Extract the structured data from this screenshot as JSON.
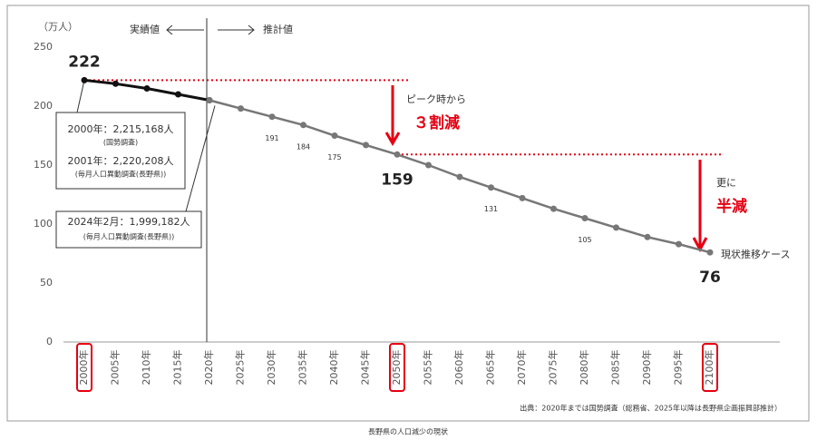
{
  "chart_data": {
    "type": "line",
    "y_label": "（万人）",
    "categories": [
      "2000年",
      "2005年",
      "2010年",
      "2015年",
      "2020年",
      "2025年",
      "2030年",
      "2035年",
      "2040年",
      "2045年",
      "2050年",
      "2055年",
      "2060年",
      "2065年",
      "2070年",
      "2075年",
      "2080年",
      "2085年",
      "2090年",
      "2095年",
      "2100年"
    ],
    "series": [
      {
        "name": "実績値",
        "color": "#111111",
        "values": [
          222,
          219,
          215,
          210,
          205,
          null,
          null,
          null,
          null,
          null,
          null,
          null,
          null,
          null,
          null,
          null,
          null,
          null,
          null,
          null,
          null
        ]
      },
      {
        "name": "推計値",
        "color": "#777777",
        "values": [
          null,
          null,
          null,
          null,
          205,
          198,
          191,
          184,
          175,
          167,
          159,
          150,
          140,
          131,
          122,
          113,
          105,
          97,
          89,
          83,
          76
        ],
        "value_labels": [
          null,
          null,
          null,
          null,
          null,
          null,
          "191",
          "184",
          "175",
          null,
          "159",
          null,
          null,
          "131",
          null,
          null,
          "105",
          null,
          null,
          null,
          "76"
        ]
      }
    ],
    "first_label": "222",
    "ylim": [
      0,
      250
    ],
    "yticks": [
      0,
      50,
      100,
      150,
      200,
      250
    ],
    "grid": false,
    "highlighted_categories": [
      0,
      10,
      20
    ],
    "highlight_color": "#e60012",
    "annotations": [
      "2000年：2,215,168人",
      "(国勢調査)",
      "2001年：2,220,208人",
      "(毎月人口異動調査(長野県))",
      "2024年2月：1,999,182人",
      "(毎月人口異動調査(長野県))",
      "ピーク時から",
      "３割減",
      "更に",
      "半減",
      "現状推移ケース"
    ],
    "source": "出典：2020年までは国勢調査（総務省、2025年以降は長野県企画振興部推計）",
    "caption": "長野県の人口減少の現状"
  }
}
